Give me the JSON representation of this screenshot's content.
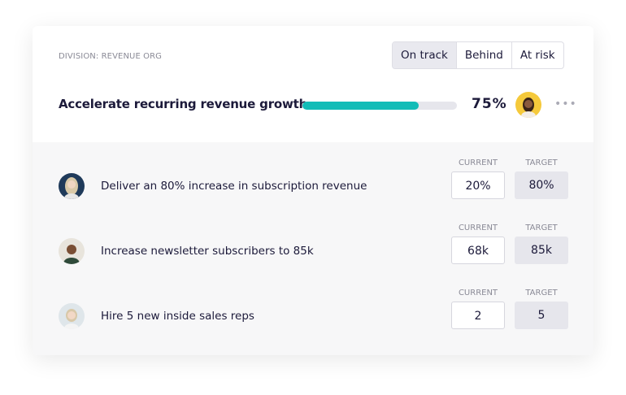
{
  "division": "DIVISION: REVENUE ORG",
  "status_options": [
    "On track",
    "Behind",
    "At risk"
  ],
  "selected_status": "On track",
  "goal": {
    "title": "Accelerate recurring revenue growth",
    "progress_percent": 75,
    "progress_label": "75%"
  },
  "more_label": "•••",
  "column_headers": {
    "current": "CURRENT",
    "target": "TARGET"
  },
  "key_results": [
    {
      "label": "Deliver an 80% increase in subscription revenue",
      "current": "20%",
      "target": "80%"
    },
    {
      "label": "Increase newsletter subscribers to 85k",
      "current": "68k",
      "target": "85k"
    },
    {
      "label": "Hire 5 new inside sales reps",
      "current": "2",
      "target": "5"
    }
  ],
  "colors": {
    "accent": "#12bcb7",
    "bg_gray": "#f7f7f8"
  }
}
